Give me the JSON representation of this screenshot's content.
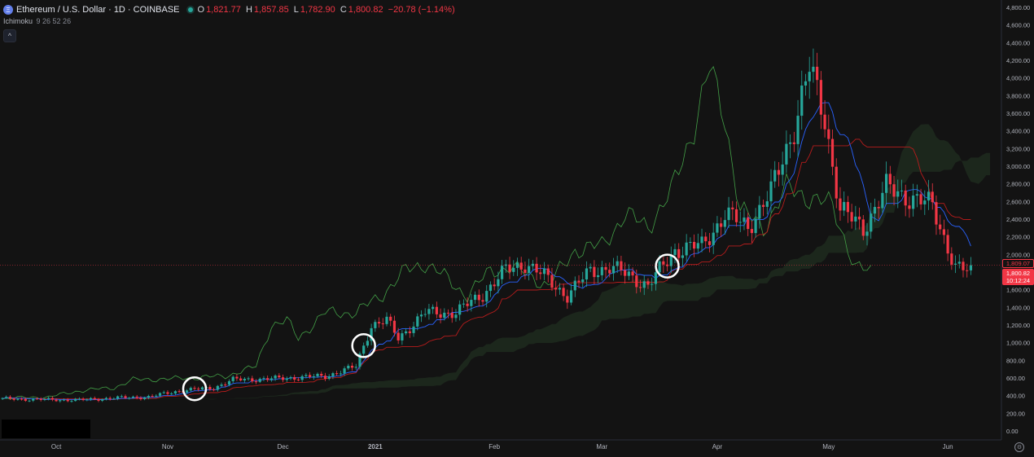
{
  "header": {
    "title": "Ethereum / U.S. Dollar · 1D · COINBASE",
    "ohlc": [
      {
        "label": "O",
        "value": "1,821.77"
      },
      {
        "label": "H",
        "value": "1,857.85"
      },
      {
        "label": "L",
        "value": "1,782.90"
      },
      {
        "label": "C",
        "value": "1,800.82"
      },
      {
        "label": "",
        "value": "−20.78 (−1.14%)"
      }
    ]
  },
  "indicator": {
    "name": "Ichimoku",
    "params": "9 26 52 26"
  },
  "price_tags": {
    "last_price": "1,800.82",
    "countdown": "10:12:24",
    "reference": "1,809.07"
  },
  "colors": {
    "background": "#131313",
    "up": "#26a69a",
    "down": "#f23645",
    "tenkan": "#2962ff",
    "kijun": "#b71c1c",
    "chikou": "#43a047",
    "cloud": "#1e2a1e",
    "cloud_red": "#3a1e1e"
  },
  "chart_data": {
    "type": "candlestick",
    "title": "Ethereum / U.S. Dollar · 1D · COINBASE",
    "ylim": [
      0,
      4800
    ],
    "y_ticks": [
      "4,800.00",
      "4,600.00",
      "4,400.00",
      "4,200.00",
      "4,000.00",
      "3,800.00",
      "3,600.00",
      "3,400.00",
      "3,200.00",
      "3,000.00",
      "2,800.00",
      "2,600.00",
      "2,400.00",
      "2,200.00",
      "2,000.00",
      "1,800.00",
      "1,600.00",
      "1,400.00",
      "1,200.00",
      "1,000.00",
      "800.00",
      "600.00",
      "400.00",
      "200.00",
      "0.00"
    ],
    "x_ticks": [
      "Oct",
      "Nov",
      "Dec",
      "2021",
      "Feb",
      "Mar",
      "Apr",
      "May",
      "Jun"
    ],
    "grid": false,
    "close_anchors": [
      {
        "day": 0,
        "value": 365
      },
      {
        "day": 10,
        "value": 355
      },
      {
        "day": 20,
        "value": 350
      },
      {
        "day": 30,
        "value": 375
      },
      {
        "day": 38,
        "value": 385
      },
      {
        "day": 46,
        "value": 455
      },
      {
        "day": 55,
        "value": 490
      },
      {
        "day": 60,
        "value": 580
      },
      {
        "day": 70,
        "value": 590
      },
      {
        "day": 78,
        "value": 610
      },
      {
        "day": 84,
        "value": 620
      },
      {
        "day": 92,
        "value": 730
      },
      {
        "day": 96,
        "value": 1200
      },
      {
        "day": 100,
        "value": 1250
      },
      {
        "day": 103,
        "value": 1050
      },
      {
        "day": 110,
        "value": 1340
      },
      {
        "day": 118,
        "value": 1340
      },
      {
        "day": 125,
        "value": 1550
      },
      {
        "day": 131,
        "value": 1820
      },
      {
        "day": 136,
        "value": 1900
      },
      {
        "day": 141,
        "value": 1750
      },
      {
        "day": 147,
        "value": 1530
      },
      {
        "day": 153,
        "value": 1820
      },
      {
        "day": 158,
        "value": 1850
      },
      {
        "day": 163,
        "value": 1770
      },
      {
        "day": 168,
        "value": 1640
      },
      {
        "day": 175,
        "value": 2050
      },
      {
        "day": 182,
        "value": 2100
      },
      {
        "day": 188,
        "value": 2450
      },
      {
        "day": 194,
        "value": 2320
      },
      {
        "day": 200,
        "value": 2700
      },
      {
        "day": 206,
        "value": 3450
      },
      {
        "day": 210,
        "value": 4100
      },
      {
        "day": 214,
        "value": 3550
      },
      {
        "day": 218,
        "value": 2500
      },
      {
        "day": 224,
        "value": 2300
      },
      {
        "day": 230,
        "value": 2750
      },
      {
        "day": 236,
        "value": 2650
      },
      {
        "day": 242,
        "value": 2550
      },
      {
        "day": 248,
        "value": 1850
      },
      {
        "day": 252,
        "value": 1800
      }
    ],
    "circled_days": [
      50,
      94,
      173
    ]
  }
}
